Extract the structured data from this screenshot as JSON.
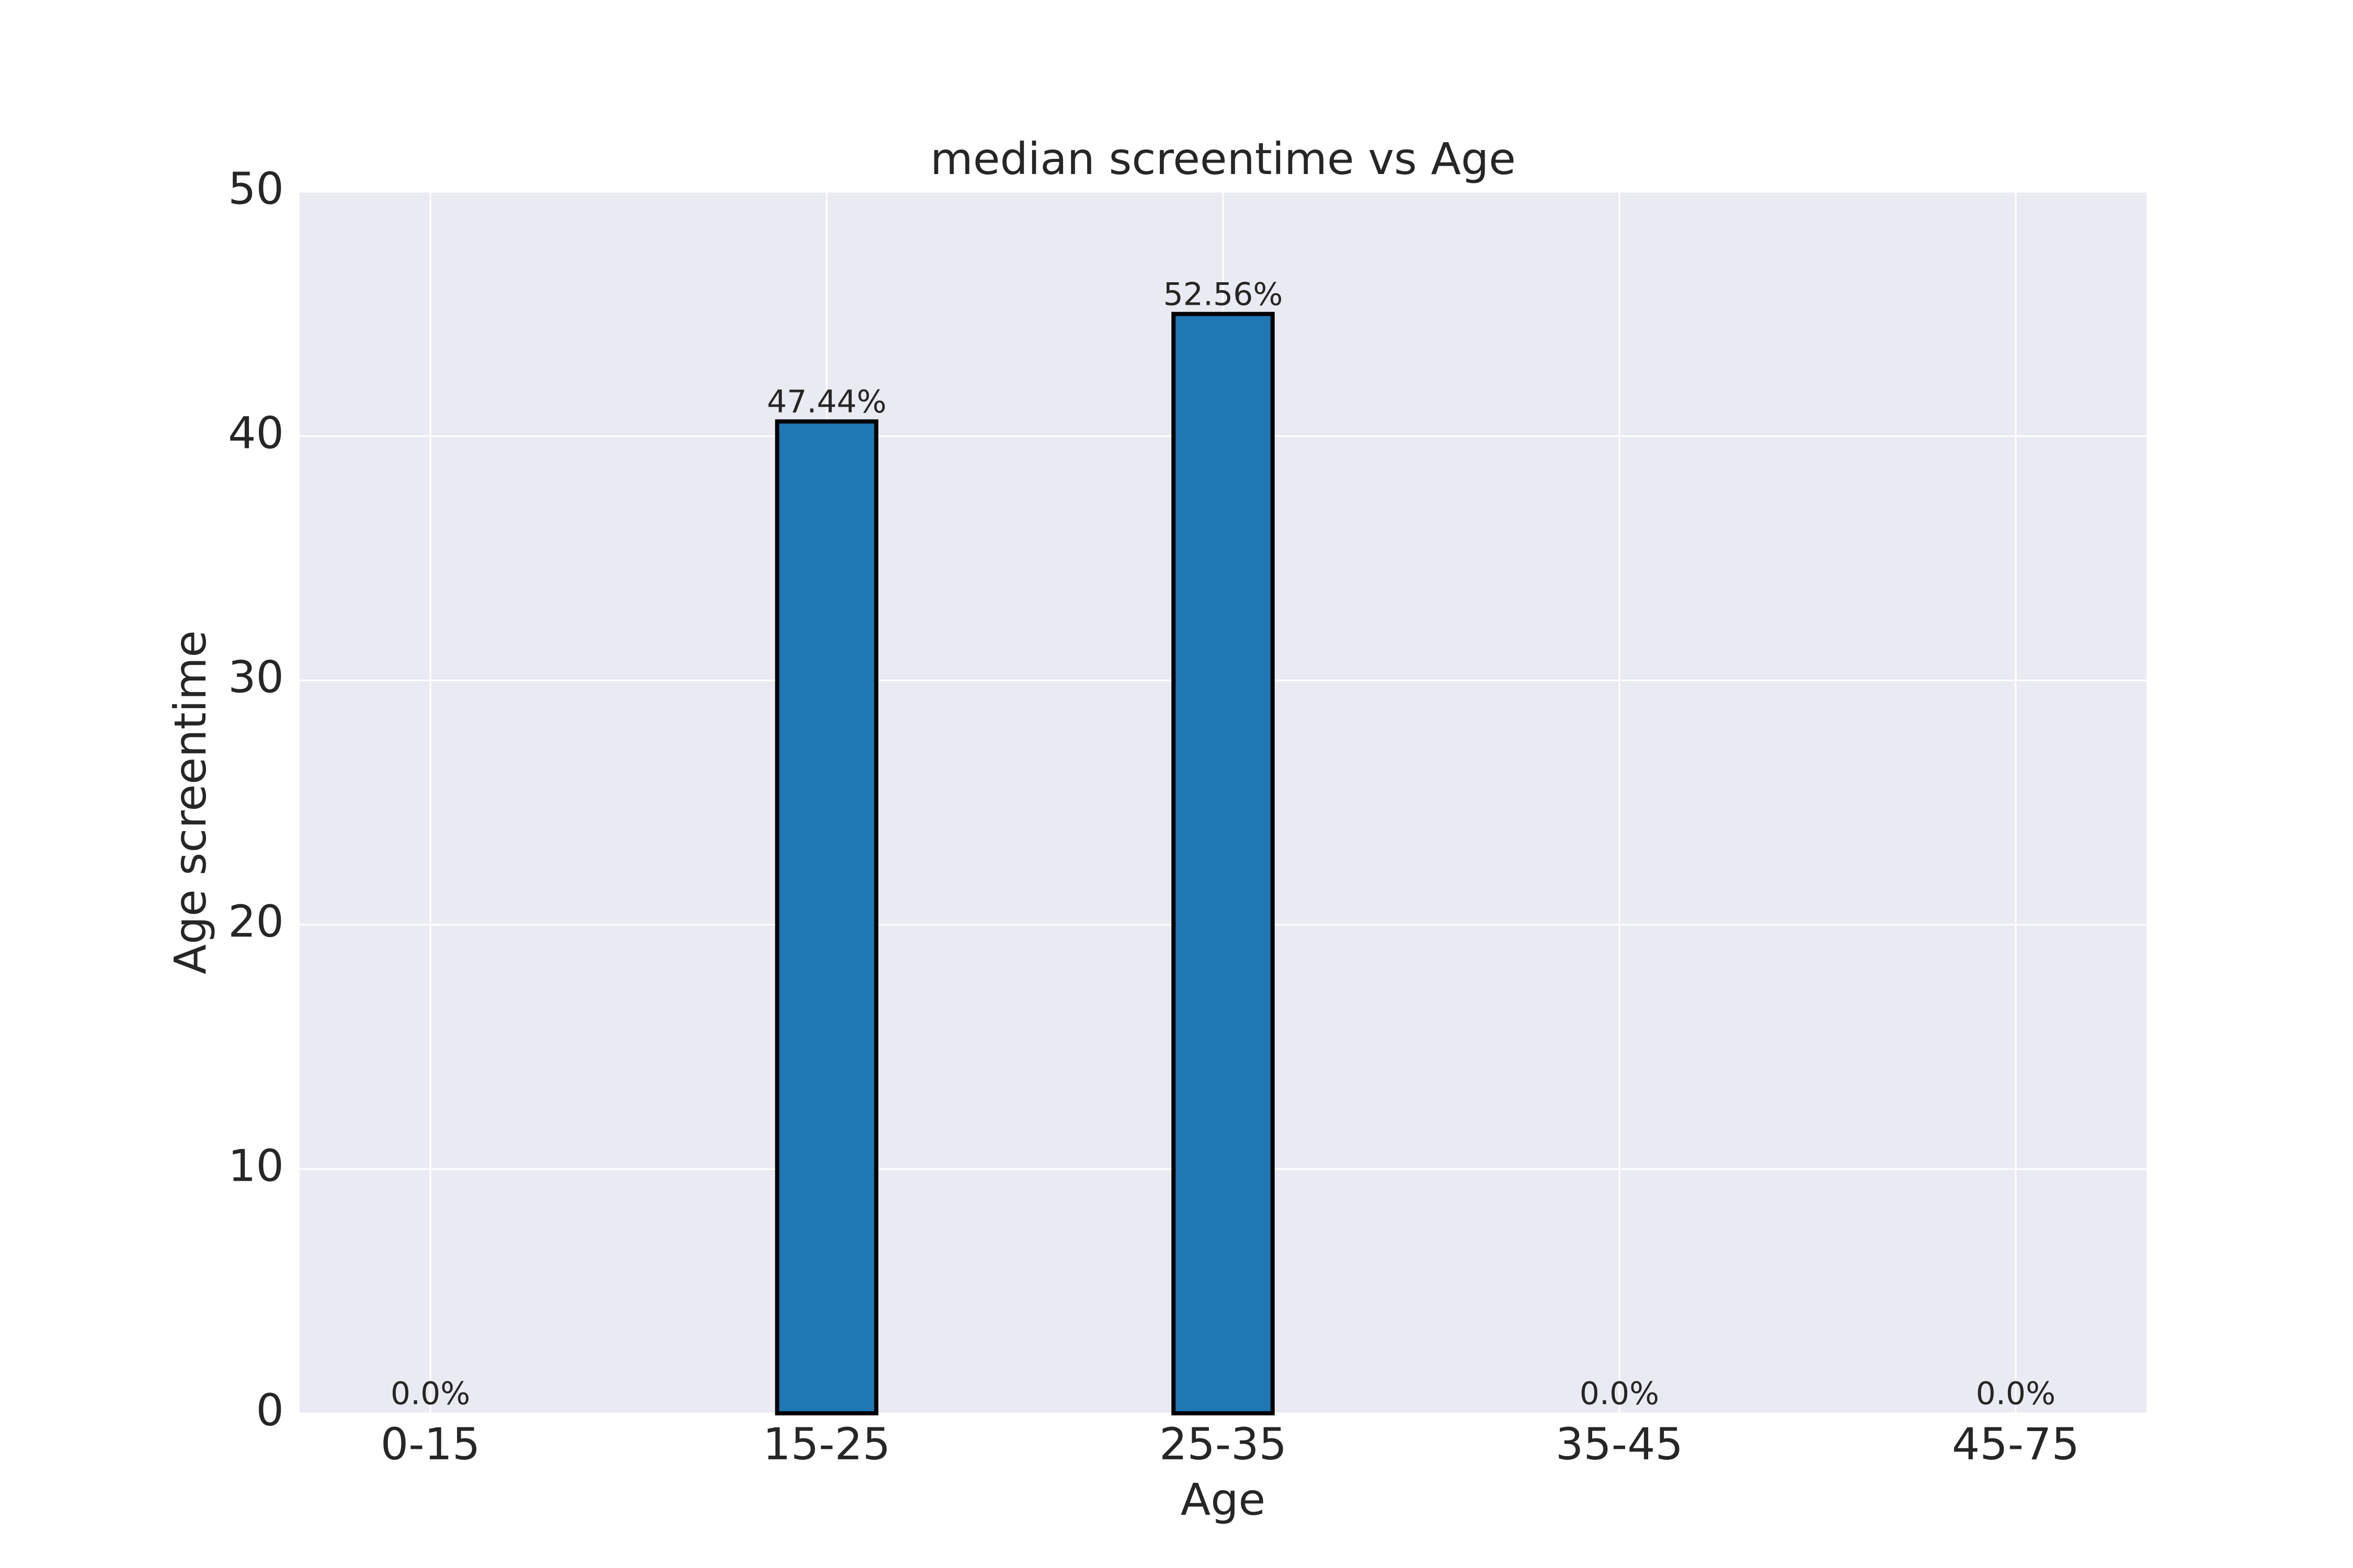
{
  "chart_data": {
    "type": "bar",
    "title": "median screentime vs Age",
    "x_label": "Age",
    "y_label": "Age screentime",
    "categories": [
      "0-15",
      "15-25",
      "25-35",
      "35-45",
      "45-75"
    ],
    "values": [
      0,
      40.6,
      45,
      0,
      0
    ],
    "bar_annotations": [
      "0.0%",
      "47.44%",
      "52.56%",
      "0.0%",
      "0.0%"
    ],
    "color": "#1f77b4",
    "edge_color": "#000000",
    "ylim": [
      0,
      50
    ],
    "yticks": [
      0,
      10,
      20,
      30,
      40,
      50
    ],
    "grid": true
  }
}
